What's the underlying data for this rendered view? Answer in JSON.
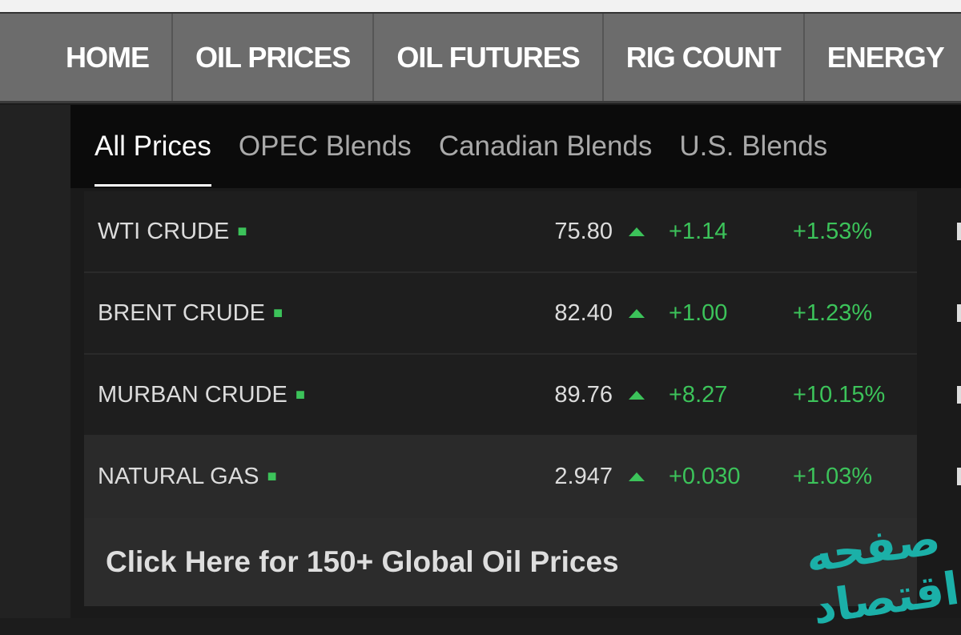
{
  "nav": {
    "items": [
      "HOME",
      "OIL PRICES",
      "OIL FUTURES",
      "RIG COUNT",
      "ENERGY"
    ]
  },
  "tabs": [
    {
      "label": "All Prices",
      "active": true
    },
    {
      "label": "OPEC Blends"
    },
    {
      "label": "Canadian Blends"
    },
    {
      "label": "U.S. Blends"
    }
  ],
  "prices": [
    {
      "name": "WTI CRUDE",
      "price": "75.80",
      "change": "+1.14",
      "percent": "+1.53%",
      "direction": "up"
    },
    {
      "name": "BRENT CRUDE",
      "price": "82.40",
      "change": "+1.00",
      "percent": "+1.23%",
      "direction": "up"
    },
    {
      "name": "MURBAN CRUDE",
      "price": "89.76",
      "change": "+8.27",
      "percent": "+10.15%",
      "direction": "up"
    },
    {
      "name": "NATURAL GAS",
      "price": "2.947",
      "change": "+0.030",
      "percent": "+1.03%",
      "direction": "up"
    }
  ],
  "cta": "Click Here for 150+ Global Oil Prices",
  "watermark": "صفحه اقتصاد",
  "colors": {
    "up": "#3cc35a",
    "nav_bg": "#6c6c6c",
    "watermark": "#1bb0a8"
  }
}
